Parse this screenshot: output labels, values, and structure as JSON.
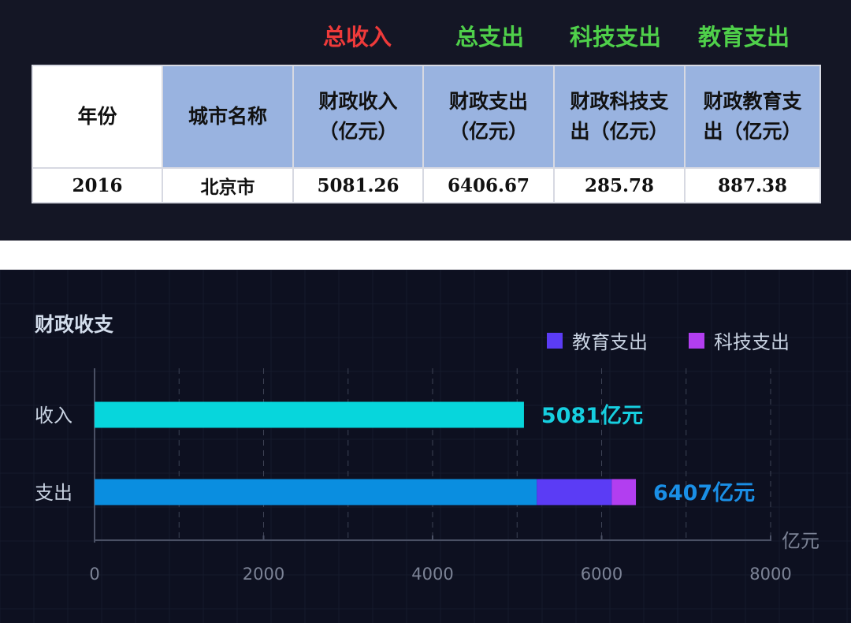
{
  "top_labels": [
    {
      "text": "总收入",
      "color": "#ee3a3a"
    },
    {
      "text": "总支出",
      "color": "#4fd04a"
    },
    {
      "text": "科技支出",
      "color": "#4fd04a"
    },
    {
      "text": "教育支出",
      "color": "#4fd04a"
    }
  ],
  "table": {
    "headers": [
      "年份",
      "城市名称",
      "财政收入（亿元）",
      "财政支出（亿元）",
      "财政科技支出（亿元）",
      "财政教育支出（亿元）"
    ],
    "row": [
      "2016",
      "北京市",
      "5081.26",
      "6406.67",
      "285.78",
      "887.38"
    ]
  },
  "chart_data": {
    "type": "bar",
    "orientation": "horizontal",
    "stacked": true,
    "title": "财政收支",
    "categories": [
      "收入",
      "支出"
    ],
    "series": [
      {
        "name": "",
        "color": "#07d6dc",
        "values": [
          5081,
          0
        ]
      },
      {
        "name": "",
        "color": "#0a8ee0",
        "values": [
          0,
          5233
        ]
      },
      {
        "name": "教育支出",
        "color": "#5b3cf5",
        "values": [
          0,
          887
        ]
      },
      {
        "name": "科技支出",
        "color": "#b23ef0",
        "values": [
          0,
          286
        ]
      }
    ],
    "totals": [
      {
        "text": "5081亿元",
        "color": "#16cfe0"
      },
      {
        "text": "6407亿元",
        "color": "#1a8fe6"
      }
    ],
    "xlabel": "亿元",
    "xlim": [
      0,
      8000
    ],
    "xticks": [
      0,
      2000,
      4000,
      6000,
      8000
    ],
    "grid": true,
    "legend": "top-right"
  }
}
